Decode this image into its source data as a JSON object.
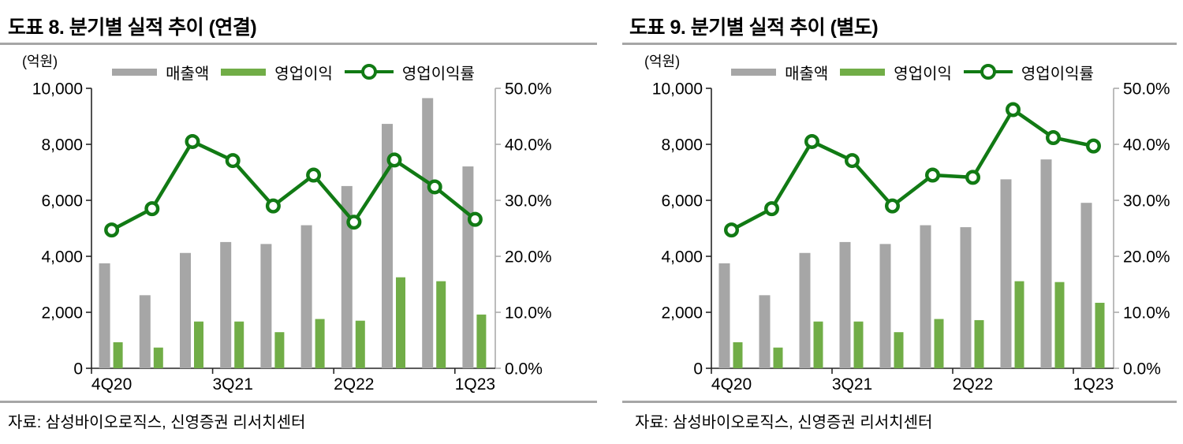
{
  "page": {
    "background": "#ffffff"
  },
  "chart_data": [
    {
      "type": "bar",
      "combo": "bar+line",
      "title": "도표 8. 분기별 실적 추이 (연결)",
      "unit_label": "(억원)",
      "source": "자료: 삼성바이오로직스, 신영증권 리서치센터",
      "legend_position": "top",
      "categories": [
        "4Q20",
        "1Q21",
        "2Q21",
        "3Q21",
        "4Q21",
        "1Q22",
        "2Q22",
        "3Q22",
        "4Q22",
        "1Q23"
      ],
      "x_axis": {
        "shown_tick_labels": [
          {
            "label": "4Q20",
            "index": 0
          },
          {
            "label": "3Q21",
            "index": 3
          },
          {
            "label": "2Q22",
            "index": 6
          },
          {
            "label": "1Q23",
            "index": 9
          }
        ]
      },
      "left_axis": {
        "min": 0,
        "max": 10000,
        "tick_labels": [
          "0",
          "2,000",
          "4,000",
          "6,000",
          "8,000",
          "10,000"
        ]
      },
      "right_axis": {
        "min": 0,
        "max": 50,
        "tick_labels": [
          "0.0%",
          "10.0%",
          "20.0%",
          "30.0%",
          "40.0%",
          "50.0%"
        ]
      },
      "series": [
        {
          "name": "매출액",
          "kind": "bar",
          "axis": "left",
          "color": "#a6a6a6",
          "values": [
            3750,
            2610,
            4120,
            4510,
            4440,
            5110,
            6510,
            8730,
            9650,
            7210
          ]
        },
        {
          "name": "영업이익",
          "kind": "bar",
          "axis": "left",
          "color": "#71ad47",
          "values": [
            930,
            740,
            1670,
            1670,
            1290,
            1760,
            1700,
            3250,
            3110,
            1920
          ]
        },
        {
          "name": "영업이익률",
          "kind": "line",
          "axis": "right",
          "color": "#117a14",
          "marker": "open-circle",
          "values": [
            24.7,
            28.5,
            40.5,
            37.1,
            29.0,
            34.5,
            26.1,
            37.2,
            32.4,
            26.6
          ]
        }
      ]
    },
    {
      "type": "bar",
      "combo": "bar+line",
      "title": "도표 9. 분기별 실적 추이 (별도)",
      "unit_label": "(억원)",
      "source": "자료: 삼성바이오로직스, 신영증권 리서치센터",
      "legend_position": "top",
      "categories": [
        "4Q20",
        "1Q21",
        "2Q21",
        "3Q21",
        "4Q21",
        "1Q22",
        "2Q22",
        "3Q22",
        "4Q22",
        "1Q23"
      ],
      "x_axis": {
        "shown_tick_labels": [
          {
            "label": "4Q20",
            "index": 0
          },
          {
            "label": "3Q21",
            "index": 3
          },
          {
            "label": "2Q22",
            "index": 6
          },
          {
            "label": "1Q23",
            "index": 9
          }
        ]
      },
      "left_axis": {
        "min": 0,
        "max": 10000,
        "tick_labels": [
          "0",
          "2,000",
          "4,000",
          "6,000",
          "8,000",
          "10,000"
        ]
      },
      "right_axis": {
        "min": 0,
        "max": 50,
        "tick_labels": [
          "0.0%",
          "10.0%",
          "20.0%",
          "30.0%",
          "40.0%",
          "50.0%"
        ]
      },
      "series": [
        {
          "name": "매출액",
          "kind": "bar",
          "axis": "left",
          "color": "#a6a6a6",
          "values": [
            3750,
            2610,
            4120,
            4510,
            4440,
            5110,
            5040,
            6750,
            7460,
            5910
          ]
        },
        {
          "name": "영업이익",
          "kind": "bar",
          "axis": "left",
          "color": "#71ad47",
          "values": [
            930,
            740,
            1670,
            1670,
            1290,
            1760,
            1720,
            3110,
            3080,
            2340
          ]
        },
        {
          "name": "영업이익률",
          "kind": "line",
          "axis": "right",
          "color": "#117a14",
          "marker": "open-circle",
          "values": [
            24.7,
            28.5,
            40.5,
            37.1,
            29.0,
            34.5,
            34.1,
            46.2,
            41.2,
            39.7
          ]
        }
      ]
    }
  ]
}
